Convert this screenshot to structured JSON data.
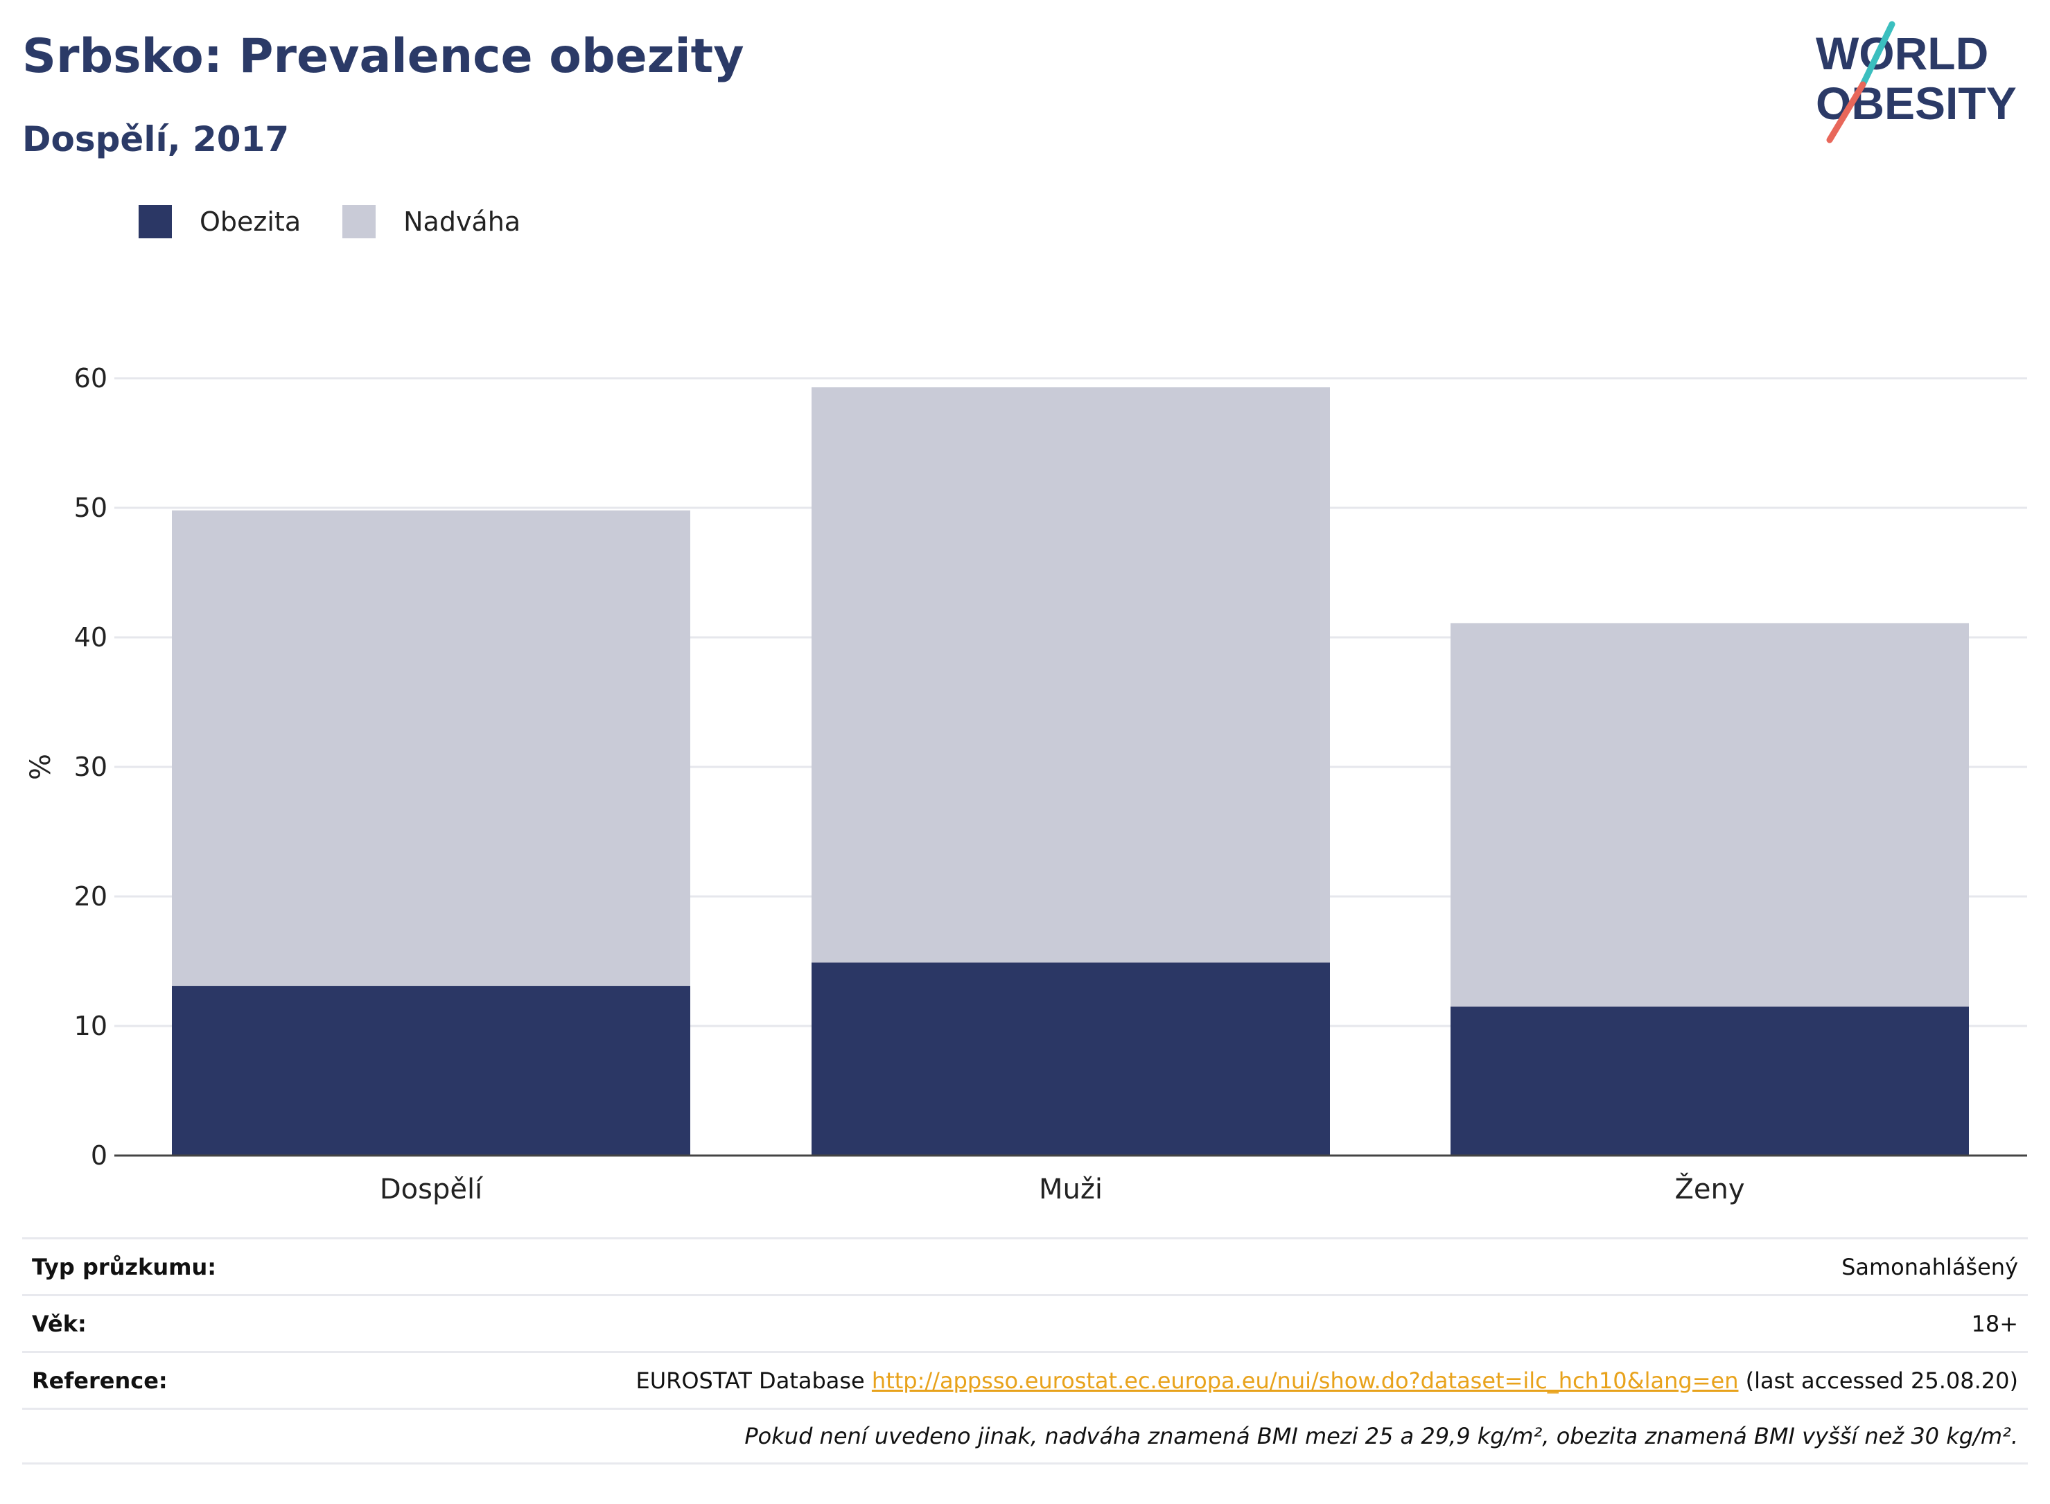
{
  "header": {
    "title": "Srbsko: Prevalence obezity",
    "subtitle": "Dospělí, 2017"
  },
  "logo": {
    "line1": "WORLD",
    "line2": "OBESITY",
    "colors": {
      "text": "#2b3a67",
      "slash_top": "#3bbfbf",
      "slash_bottom": "#e8675a"
    }
  },
  "legend": [
    {
      "label": "Obezita",
      "color": "#2b3765"
    },
    {
      "label": "Nadváha",
      "color": "#c9cbd7"
    }
  ],
  "chart_data": {
    "type": "bar",
    "stacked": true,
    "categories": [
      "Dospělí",
      "Muži",
      "Ženy"
    ],
    "series": [
      {
        "name": "Obezita",
        "values": [
          13.1,
          14.9,
          11.5
        ],
        "color": "#2b3765"
      },
      {
        "name": "Nadváha",
        "values": [
          36.7,
          44.4,
          29.6
        ],
        "color": "#c9cbd7"
      }
    ],
    "ylabel": "%",
    "ylim": [
      0,
      60
    ],
    "yticks": [
      0,
      10,
      20,
      30,
      40,
      50,
      60
    ],
    "grid": true
  },
  "info": {
    "survey_type_label": "Typ průzkumu:",
    "survey_type_value": "Samonahlášený",
    "age_label": "Věk:",
    "age_value": "18+",
    "reference_label": "Reference:",
    "reference_prefix": "EUROSTAT Database ",
    "reference_link": "http://appsso.eurostat.ec.europa.eu/nui/show.do?dataset=ilc_hch10&lang=en",
    "reference_suffix": " (last accessed 25.08.20)",
    "note": "Pokud není uvedeno jinak, nadváha znamená BMI mezi 25 a 29,9 kg/m², obezita znamená BMI vyšší než 30 kg/m²."
  }
}
